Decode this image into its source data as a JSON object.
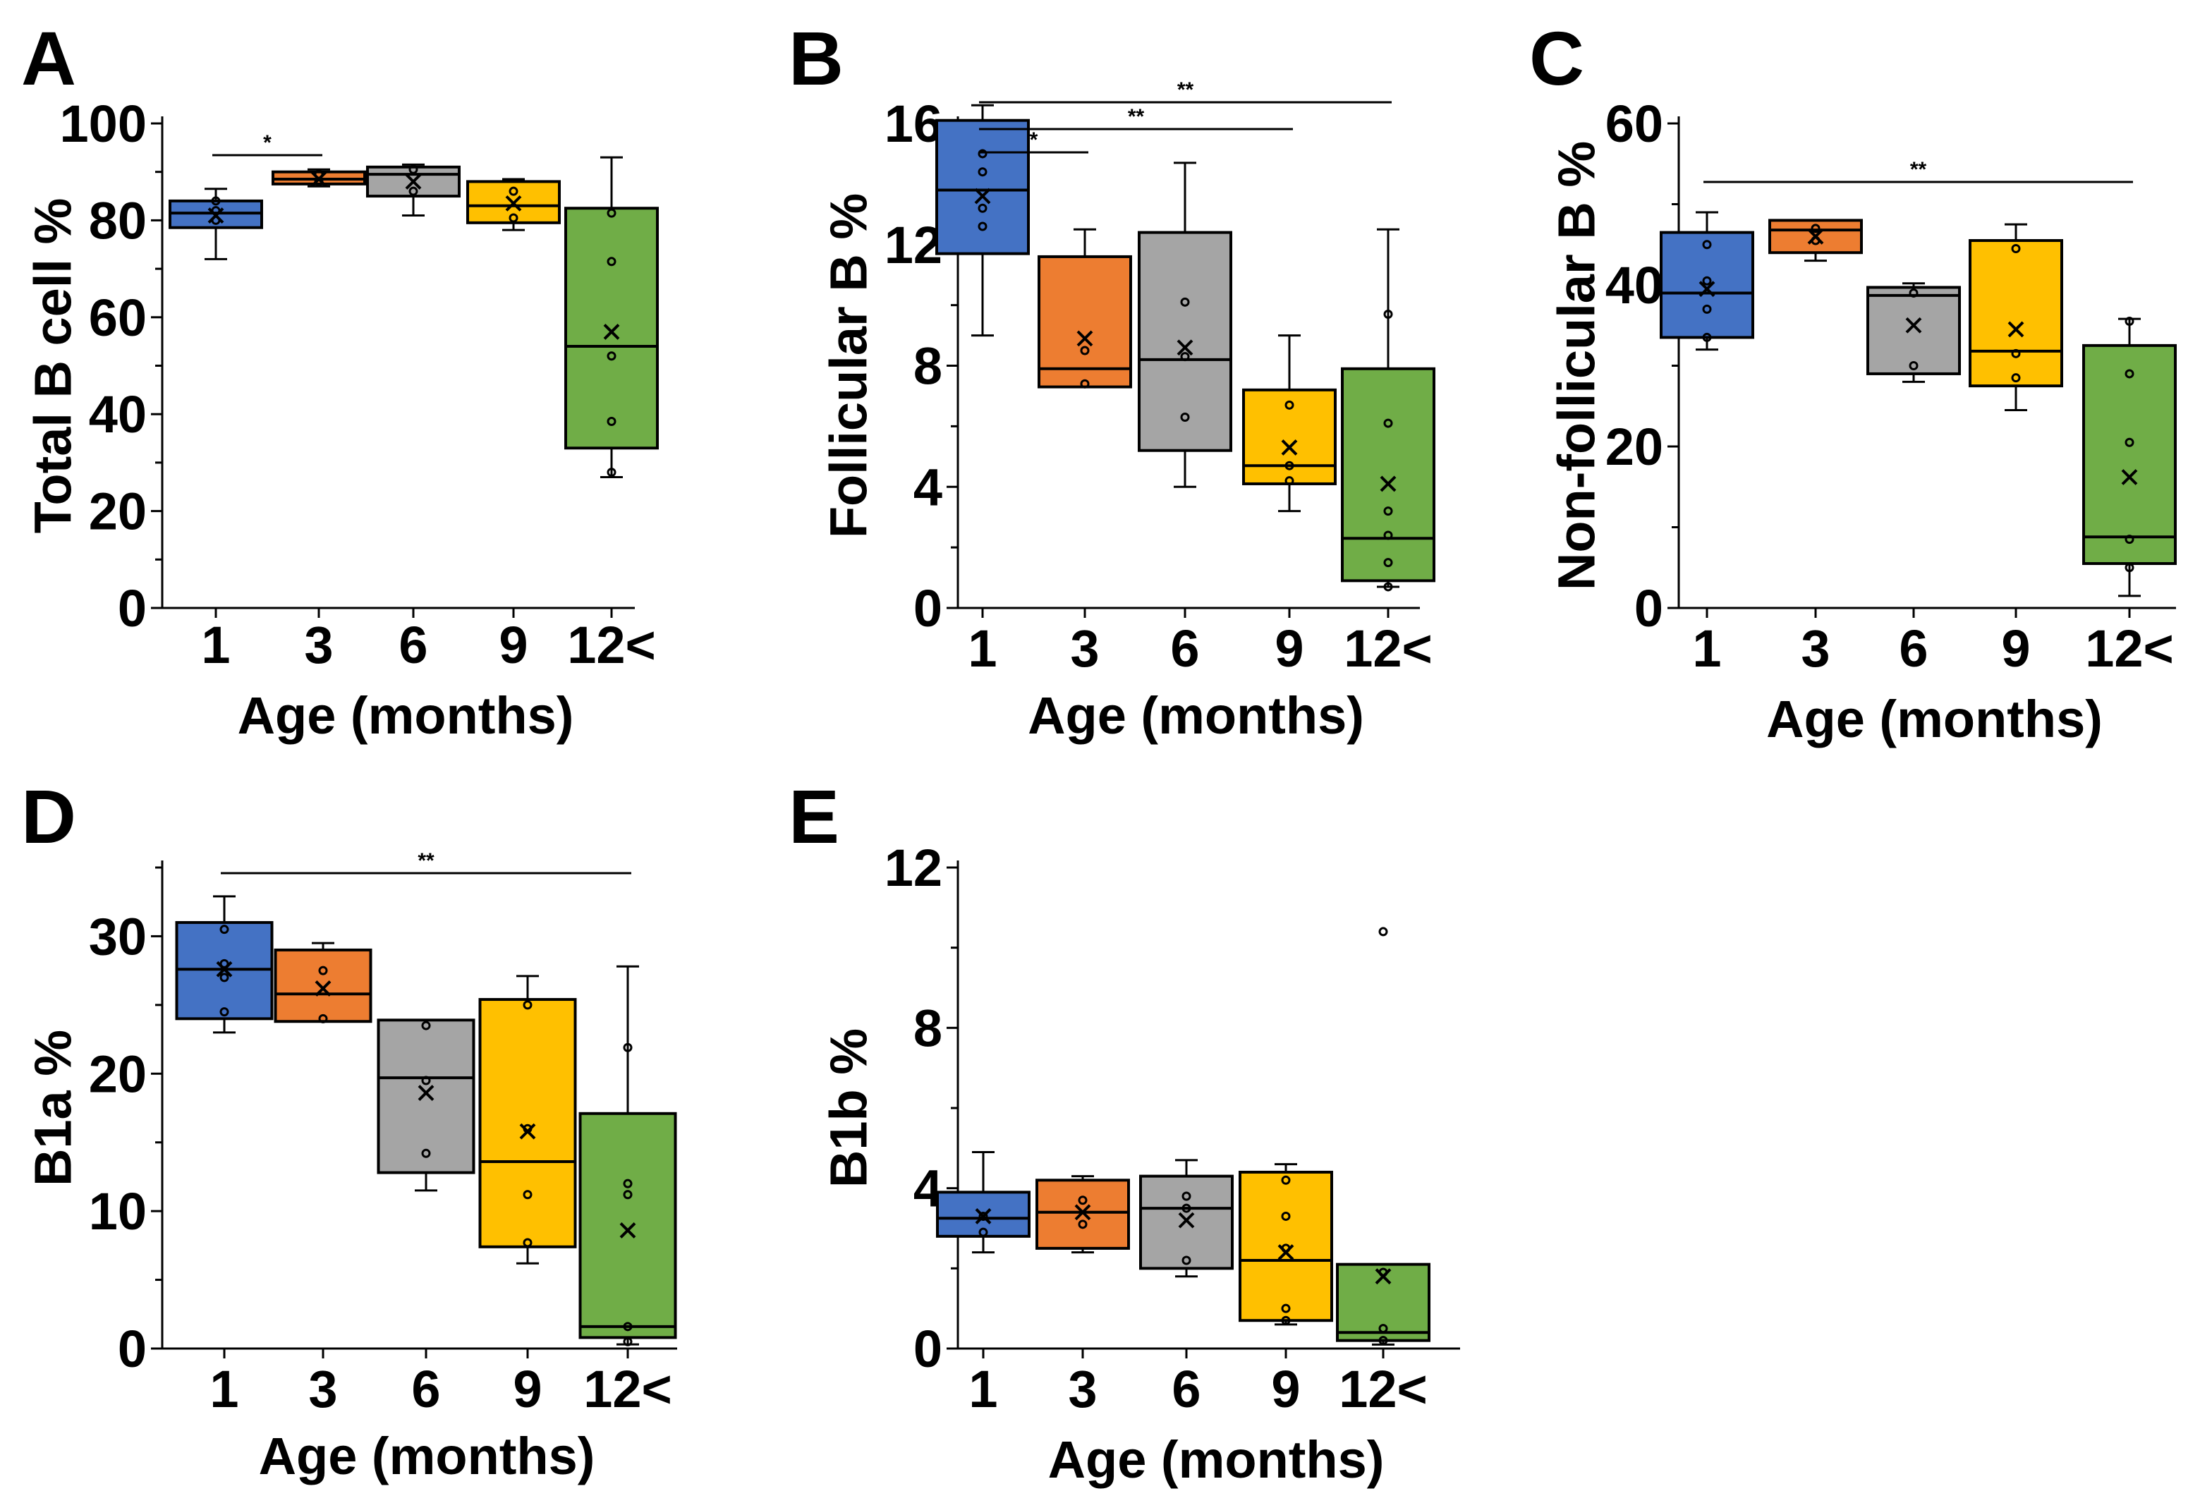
{
  "chart_data": [
    {
      "panel": "A",
      "type": "box",
      "xlabel": "Age (months)",
      "ylabel": "Total B cell %",
      "ylim": [
        0,
        100
      ],
      "yticks": [
        0,
        20,
        40,
        60,
        80,
        100
      ],
      "categories": [
        "1",
        "3",
        "6",
        "9",
        "12<"
      ],
      "colors": [
        "#4472C4",
        "#ED7D31",
        "#A5A5A5",
        "#FFC000",
        "#70AD47"
      ],
      "boxes": [
        {
          "whisker_low": 72,
          "q1": 78.5,
          "median": 81.5,
          "q3": 84,
          "whisker_high": 86.5,
          "mean": 81,
          "points": [
            80,
            82,
            84
          ]
        },
        {
          "whisker_low": 87,
          "q1": 87.5,
          "median": 88.5,
          "q3": 90,
          "whisker_high": 90.5,
          "mean": 88.5,
          "points": [
            88,
            89.5
          ]
        },
        {
          "whisker_low": 81,
          "q1": 85,
          "median": 89.5,
          "q3": 91,
          "whisker_high": 91.5,
          "mean": 88,
          "points": [
            86,
            90.5
          ]
        },
        {
          "whisker_low": 78,
          "q1": 79.5,
          "median": 83,
          "q3": 88,
          "whisker_high": 88.5,
          "mean": 83.5,
          "points": [
            80.5,
            86
          ]
        },
        {
          "whisker_low": 27,
          "q1": 33,
          "median": 54,
          "q3": 82.5,
          "whisker_high": 93,
          "mean": 57,
          "points": [
            28,
            38.5,
            52,
            71.5,
            81.5
          ]
        }
      ],
      "significance": [
        {
          "from": "1",
          "to": "3",
          "label": "*"
        }
      ]
    },
    {
      "panel": "B",
      "type": "box",
      "xlabel": "Age (months)",
      "ylabel": "Follicular B %",
      "ylim": [
        0,
        16
      ],
      "yticks": [
        0,
        4,
        8,
        12,
        16
      ],
      "categories": [
        "1",
        "3",
        "6",
        "9",
        "12<"
      ],
      "colors": [
        "#4472C4",
        "#ED7D31",
        "#A5A5A5",
        "#FFC000",
        "#70AD47"
      ],
      "boxes": [
        {
          "whisker_low": 9,
          "q1": 11.7,
          "median": 13.8,
          "q3": 16.1,
          "whisker_high": 16.6,
          "mean": 13.6,
          "points": [
            12.6,
            13.2,
            14.4,
            15
          ]
        },
        {
          "whisker_low": 7.3,
          "q1": 7.3,
          "median": 7.9,
          "q3": 11.6,
          "whisker_high": 12.5,
          "mean": 8.9,
          "points": [
            7.4,
            8.5
          ]
        },
        {
          "whisker_low": 4,
          "q1": 5.2,
          "median": 8.2,
          "q3": 12.4,
          "whisker_high": 14.7,
          "mean": 8.6,
          "points": [
            6.3,
            8.3,
            10.1
          ]
        },
        {
          "whisker_low": 3.2,
          "q1": 4.1,
          "median": 4.7,
          "q3": 7.2,
          "whisker_high": 9,
          "mean": 5.3,
          "points": [
            4.2,
            4.7,
            6.7
          ]
        },
        {
          "whisker_low": 0.7,
          "q1": 0.9,
          "median": 2.3,
          "q3": 7.9,
          "whisker_high": 12.5,
          "mean": 4.1,
          "points": [
            0.7,
            1.5,
            2.4,
            3.2,
            6.1,
            9.7
          ]
        }
      ],
      "significance": [
        {
          "from": "1",
          "to": "3",
          "label": "*"
        },
        {
          "from": "1",
          "to": "9",
          "label": "**"
        },
        {
          "from": "1",
          "to": "12<",
          "label": "**"
        }
      ]
    },
    {
      "panel": "C",
      "type": "box",
      "xlabel": "Age (months)",
      "ylabel": "Non-follicular B %",
      "ylim": [
        0,
        60
      ],
      "yticks": [
        0,
        20,
        40,
        60
      ],
      "categories": [
        "1",
        "3",
        "6",
        "9",
        "12<"
      ],
      "colors": [
        "#4472C4",
        "#ED7D31",
        "#A5A5A5",
        "#FFC000",
        "#70AD47"
      ],
      "boxes": [
        {
          "whisker_low": 32,
          "q1": 33.5,
          "median": 39,
          "q3": 46.5,
          "whisker_high": 49,
          "mean": 39.5,
          "points": [
            33.5,
            37,
            40.5,
            45
          ]
        },
        {
          "whisker_low": 43,
          "q1": 44,
          "median": 46.8,
          "q3": 48,
          "whisker_high": 48,
          "mean": 46,
          "points": [
            45.5,
            47
          ]
        },
        {
          "whisker_low": 28,
          "q1": 29,
          "median": 38.7,
          "q3": 39.7,
          "whisker_high": 40.2,
          "mean": 35,
          "points": [
            30,
            39
          ]
        },
        {
          "whisker_low": 24.5,
          "q1": 27.5,
          "median": 31.8,
          "q3": 45.5,
          "whisker_high": 47.5,
          "mean": 34.5,
          "points": [
            28.5,
            31.5,
            44.5
          ]
        },
        {
          "whisker_low": 1.5,
          "q1": 5.5,
          "median": 8.8,
          "q3": 32.5,
          "whisker_high": 35.8,
          "mean": 16.2,
          "points": [
            5,
            8.5,
            20.5,
            29,
            35.5
          ]
        }
      ],
      "significance": [
        {
          "from": "1",
          "to": "12<",
          "label": "**"
        }
      ]
    },
    {
      "panel": "D",
      "type": "box",
      "xlabel": "Age (months)",
      "ylabel": "B1a %",
      "ylim": [
        0,
        35
      ],
      "yticks": [
        0,
        10,
        20,
        30
      ],
      "categories": [
        "1",
        "3",
        "6",
        "9",
        "12<"
      ],
      "colors": [
        "#4472C4",
        "#ED7D31",
        "#A5A5A5",
        "#FFC000",
        "#70AD47"
      ],
      "boxes": [
        {
          "whisker_low": 23,
          "q1": 24,
          "median": 27.6,
          "q3": 31,
          "whisker_high": 32.9,
          "mean": 27.6,
          "points": [
            24.5,
            27,
            28,
            30.5
          ]
        },
        {
          "whisker_low": 23.8,
          "q1": 23.8,
          "median": 25.8,
          "q3": 29,
          "whisker_high": 29.5,
          "mean": 26.2,
          "points": [
            24,
            27.5
          ]
        },
        {
          "whisker_low": 11.5,
          "q1": 12.8,
          "median": 19.7,
          "q3": 23.9,
          "whisker_high": 23.9,
          "mean": 18.6,
          "points": [
            14.2,
            19.5,
            23.5
          ]
        },
        {
          "whisker_low": 6.2,
          "q1": 7.4,
          "median": 13.6,
          "q3": 25.4,
          "whisker_high": 27.1,
          "mean": 15.8,
          "points": [
            7.7,
            11.2,
            16,
            25
          ]
        },
        {
          "whisker_low": 0.3,
          "q1": 0.8,
          "median": 1.6,
          "q3": 17.1,
          "whisker_high": 27.8,
          "mean": 8.6,
          "points": [
            0.5,
            1.6,
            11.2,
            12,
            21.9
          ]
        }
      ],
      "significance": [
        {
          "from": "1",
          "to": "12<",
          "label": "**"
        }
      ]
    },
    {
      "panel": "E",
      "type": "box",
      "xlabel": "Age (months)",
      "ylabel": "B1b %",
      "ylim": [
        0,
        12
      ],
      "yticks": [
        0,
        4,
        8,
        12
      ],
      "categories": [
        "1",
        "3",
        "6",
        "9",
        "12<"
      ],
      "colors": [
        "#4472C4",
        "#ED7D31",
        "#A5A5A5",
        "#FFC000",
        "#70AD47"
      ],
      "boxes": [
        {
          "whisker_low": 2.4,
          "q1": 2.8,
          "median": 3.25,
          "q3": 3.9,
          "whisker_high": 4.9,
          "mean": 3.3,
          "points": [
            2.9,
            3.3
          ]
        },
        {
          "whisker_low": 2.4,
          "q1": 2.5,
          "median": 3.4,
          "q3": 4.2,
          "whisker_high": 4.3,
          "mean": 3.4,
          "points": [
            3.1,
            3.7
          ]
        },
        {
          "whisker_low": 1.8,
          "q1": 2,
          "median": 3.5,
          "q3": 4.3,
          "whisker_high": 4.7,
          "mean": 3.2,
          "points": [
            2.2,
            3.5,
            3.8
          ]
        },
        {
          "whisker_low": 0.6,
          "q1": 0.7,
          "median": 2.2,
          "q3": 4.4,
          "whisker_high": 4.6,
          "mean": 2.4,
          "points": [
            0.7,
            1,
            2.5,
            3.3,
            4.2
          ]
        },
        {
          "whisker_low": 0.1,
          "q1": 0.2,
          "median": 0.4,
          "q3": 2.1,
          "whisker_high": 2.1,
          "mean": 1.8,
          "points": [
            0.2,
            0.5,
            1.9,
            10.4
          ]
        }
      ],
      "significance": []
    }
  ]
}
